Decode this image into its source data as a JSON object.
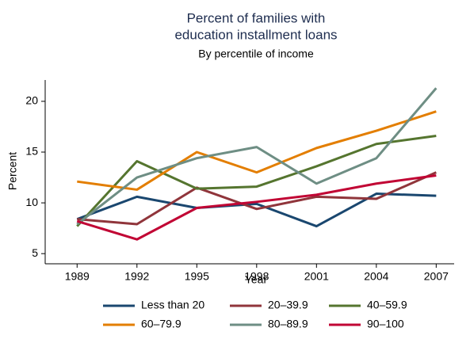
{
  "chart_data": {
    "type": "line",
    "title": [
      "Percent of families with",
      "education installment loans"
    ],
    "subtitle": "By percentile of income",
    "x_label": "Year",
    "y_label": "Percent",
    "x": [
      1989,
      1992,
      1995,
      1998,
      2001,
      2004,
      2007
    ],
    "xlim": [
      1987.4,
      2007.9
    ],
    "xticks": [
      1989,
      1992,
      1995,
      1998,
      2001,
      2004,
      2007
    ],
    "ylim": [
      4,
      22.1
    ],
    "yticks": [
      5,
      10,
      15,
      20
    ],
    "grid": false,
    "series": [
      {
        "name": "Less than 20",
        "color": "#1a476f",
        "values": [
          8.4,
          10.6,
          9.5,
          9.9,
          7.7,
          10.9,
          10.7
        ]
      },
      {
        "name": "20–39.9",
        "color": "#90353b",
        "values": [
          8.4,
          7.9,
          11.5,
          9.4,
          10.6,
          10.4,
          13.0
        ]
      },
      {
        "name": "40–59.9",
        "color": "#55752f",
        "values": [
          7.7,
          14.1,
          11.4,
          11.6,
          13.6,
          15.8,
          16.6
        ]
      },
      {
        "name": "60–79.9",
        "color": "#e37e00",
        "values": [
          12.1,
          11.3,
          15.0,
          13.0,
          15.4,
          17.1,
          19.0
        ]
      },
      {
        "name": "80–89.9",
        "color": "#6e8e84",
        "values": [
          7.9,
          12.5,
          14.4,
          15.5,
          11.9,
          14.4,
          21.3
        ]
      },
      {
        "name": "90–100",
        "color": "#c10534",
        "values": [
          8.2,
          6.4,
          9.5,
          10.1,
          10.8,
          11.9,
          12.7
        ]
      }
    ]
  }
}
